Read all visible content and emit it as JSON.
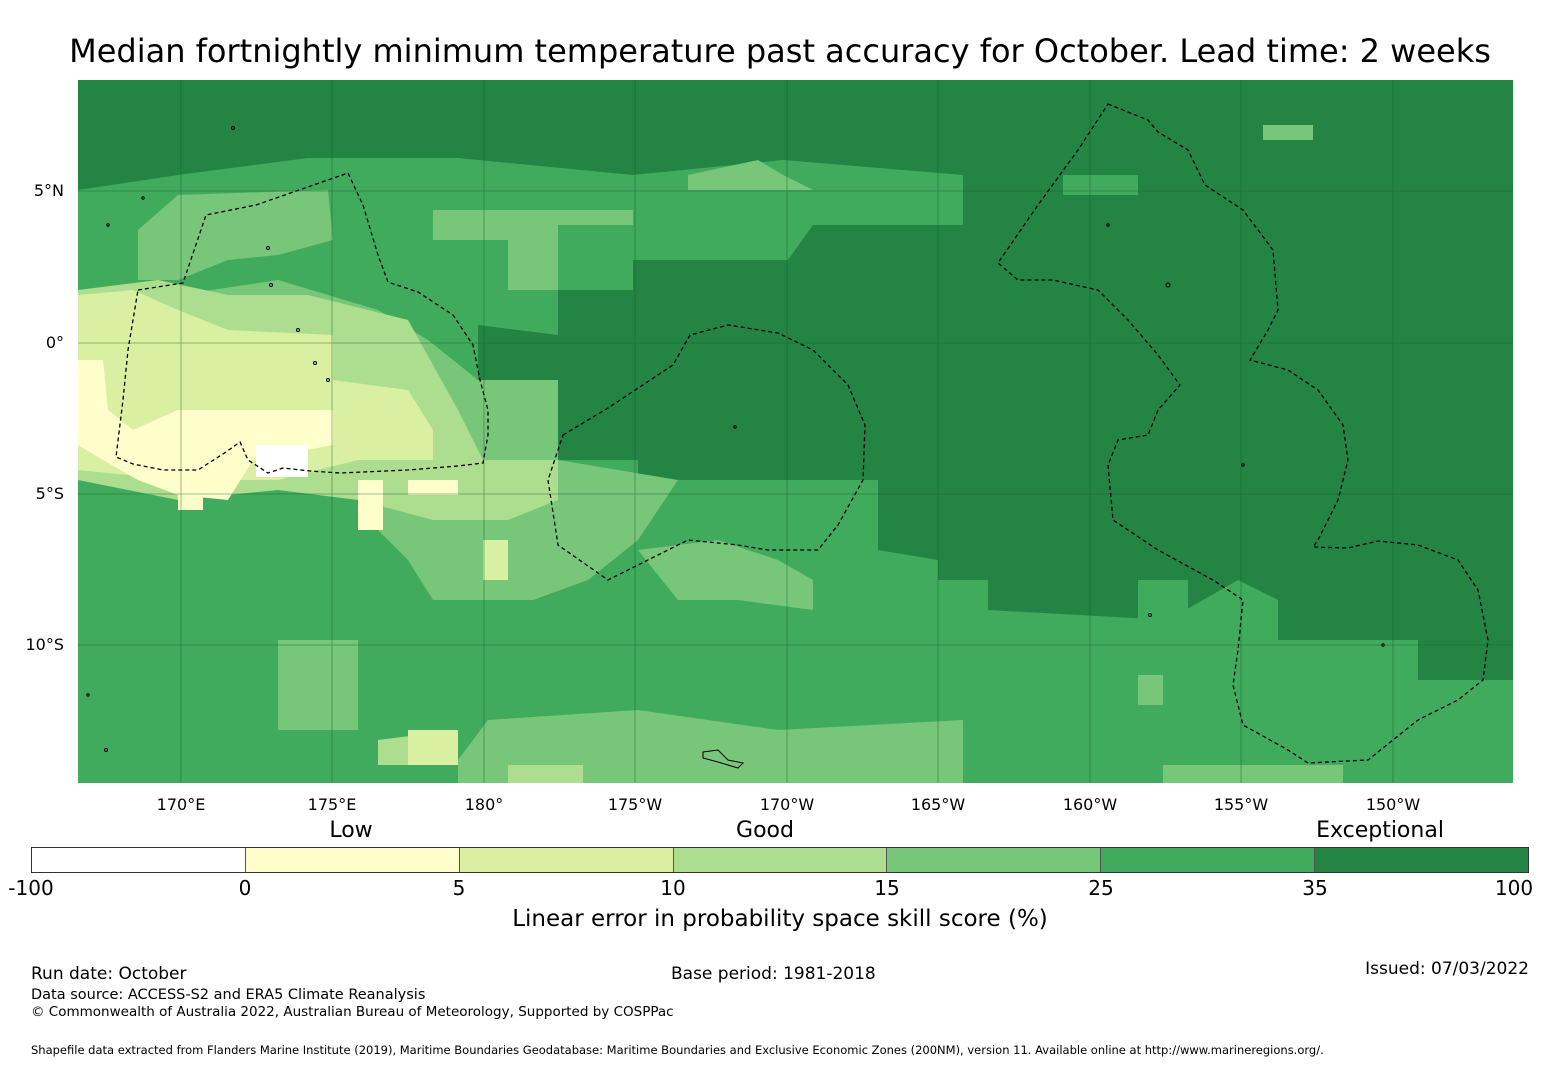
{
  "title": "Median fortnightly minimum temperature past accuracy for October. Lead time: 2 weeks",
  "map": {
    "lat_labels": [
      "5°N",
      "0°",
      "5°S",
      "10°S"
    ],
    "lon_labels": [
      "170°E",
      "175°E",
      "180°",
      "175°W",
      "170°W",
      "165°W",
      "160°W",
      "155°W",
      "150°W"
    ],
    "lat_range": [
      -14.5,
      8.5
    ],
    "lon_range": [
      166.5,
      213.8
    ]
  },
  "colorbar": {
    "categories": [
      "Low",
      "Good",
      "Exceptional"
    ],
    "ticks": [
      "-100",
      "0",
      "5",
      "10",
      "15",
      "25",
      "35",
      "100"
    ],
    "colors": [
      "#ffffff",
      "#ffffcc",
      "#d9f0a3",
      "#addd8e",
      "#78c679",
      "#41ab5d",
      "#238443"
    ],
    "label": "Linear error in probability space skill score (%)"
  },
  "footer": {
    "run_date": "Run date: October",
    "base_period": "Base period: 1981-2018",
    "issued": "Issued: 07/03/2022",
    "data_source": "Data source: ACCESS-S2 and ERA5 Climate Reanalysis",
    "copyright": "© Commonwealth of Australia 2022, Australian Bureau of Meteorology, Supported by COSPPac",
    "shapefile": "Shapefile data extracted from Flanders Marine Institute (2019), Maritime Boundaries Geodatabase: Maritime Boundaries and Exclusive Economic Zones (200NM), version 11. Available online at http://www.marineregions.org/."
  }
}
